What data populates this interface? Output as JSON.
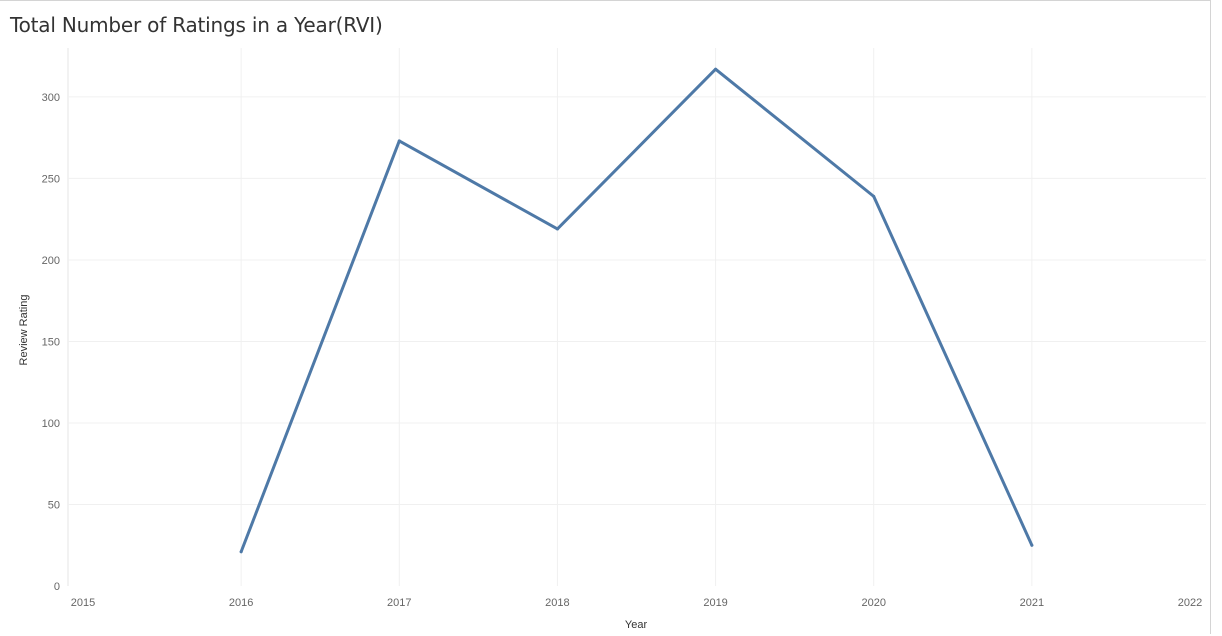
{
  "chart_data": {
    "type": "line",
    "title": "Total Number of Ratings in a Year(RVI)",
    "xlabel": "Year",
    "ylabel": "Review Rating",
    "x_ticks": [
      "2015",
      "2016",
      "2017",
      "2018",
      "2019",
      "2020",
      "2021",
      "2022"
    ],
    "y_ticks": [
      "0",
      "50",
      "100",
      "150",
      "200",
      "250",
      "300"
    ],
    "xlim": [
      2015,
      2022
    ],
    "ylim": [
      0,
      330
    ],
    "grid": true,
    "line_color": "#4e79a7",
    "series": [
      {
        "x": [
          2016,
          2017,
          2018,
          2019,
          2020,
          2021
        ],
        "values": [
          21,
          273,
          219,
          317,
          239,
          25
        ]
      }
    ]
  }
}
